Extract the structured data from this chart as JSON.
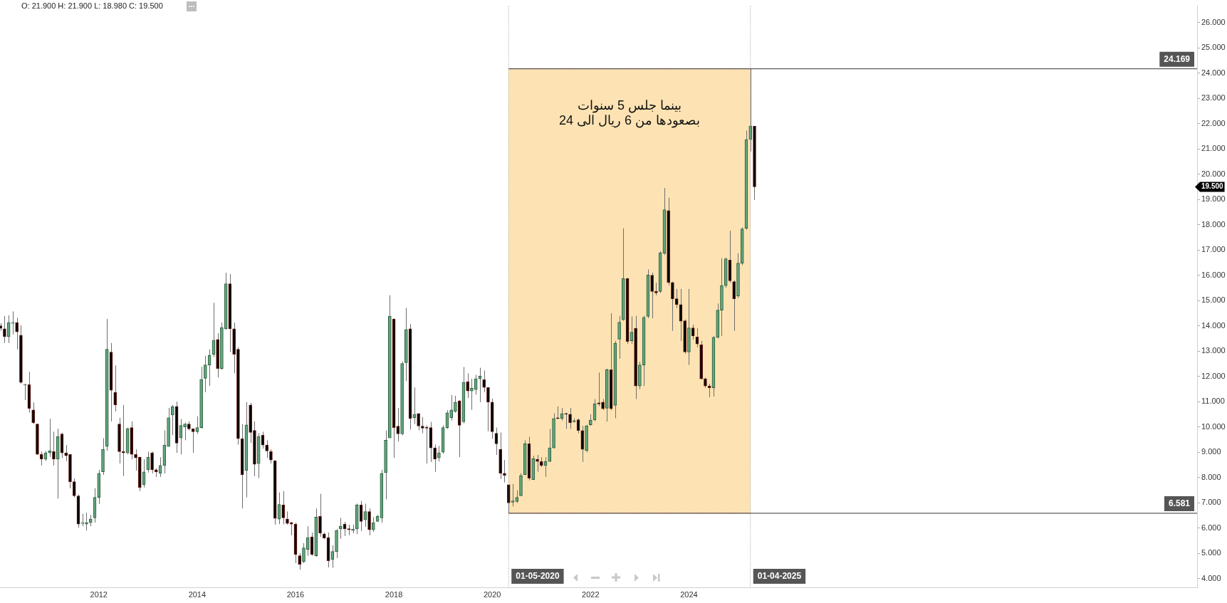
{
  "chart_data": {
    "type": "candlestick",
    "x": [
      "2010-01",
      "2010-02",
      "2010-03",
      "2010-04",
      "2010-05",
      "2010-06",
      "2010-07",
      "2010-08",
      "2010-09",
      "2010-10",
      "2010-11",
      "2010-12",
      "2011-01",
      "2011-02",
      "2011-03",
      "2011-04",
      "2011-05",
      "2011-06",
      "2011-07",
      "2011-08",
      "2011-09",
      "2011-10",
      "2011-11",
      "2011-12",
      "2012-01",
      "2012-02",
      "2012-03",
      "2012-04",
      "2012-05",
      "2012-06",
      "2012-07",
      "2012-08",
      "2012-09",
      "2012-10",
      "2012-11",
      "2012-12",
      "2013-01",
      "2013-02",
      "2013-03",
      "2013-04",
      "2013-05",
      "2013-06",
      "2013-07",
      "2013-08",
      "2013-09",
      "2013-10",
      "2013-11",
      "2013-12",
      "2014-01",
      "2014-02",
      "2014-03",
      "2014-04",
      "2014-05",
      "2014-06",
      "2014-07",
      "2014-08",
      "2014-09",
      "2014-10",
      "2014-11",
      "2014-12",
      "2015-01",
      "2015-02",
      "2015-03",
      "2015-04",
      "2015-05",
      "2015-06",
      "2015-07",
      "2015-08",
      "2015-09",
      "2015-10",
      "2015-11",
      "2015-12",
      "2016-01",
      "2016-02",
      "2016-03",
      "2016-04",
      "2016-05",
      "2016-06",
      "2016-07",
      "2016-08",
      "2016-09",
      "2016-10",
      "2016-11",
      "2016-12",
      "2017-01",
      "2017-02",
      "2017-03",
      "2017-04",
      "2017-05",
      "2017-06",
      "2017-07",
      "2017-08",
      "2017-09",
      "2017-10",
      "2017-11",
      "2017-12",
      "2018-01",
      "2018-02",
      "2018-03",
      "2018-04",
      "2018-05",
      "2018-06",
      "2018-07",
      "2018-08",
      "2018-09",
      "2018-10",
      "2018-11",
      "2018-12",
      "2019-01",
      "2019-02",
      "2019-03",
      "2019-04",
      "2019-05",
      "2019-06",
      "2019-07",
      "2019-08",
      "2019-09",
      "2019-10",
      "2019-11",
      "2019-12",
      "2020-01",
      "2020-02",
      "2020-03",
      "2020-04",
      "2020-05",
      "2020-06",
      "2020-07",
      "2020-08",
      "2020-09",
      "2020-10",
      "2020-11",
      "2020-12",
      "2021-01",
      "2021-02",
      "2021-03",
      "2021-04",
      "2021-05",
      "2021-06",
      "2021-07",
      "2021-08",
      "2021-09",
      "2021-10",
      "2021-11",
      "2021-12",
      "2022-01",
      "2022-02",
      "2022-03",
      "2022-04",
      "2022-05",
      "2022-06",
      "2022-07",
      "2022-08",
      "2022-09",
      "2022-10",
      "2022-11",
      "2022-12",
      "2023-01",
      "2023-02",
      "2023-03",
      "2023-04",
      "2023-05",
      "2023-06",
      "2023-07",
      "2023-08",
      "2023-09",
      "2023-10",
      "2023-11",
      "2023-12",
      "2024-01",
      "2024-02",
      "2024-03",
      "2024-04",
      "2024-05",
      "2024-06",
      "2024-07",
      "2024-08",
      "2024-09",
      "2024-10",
      "2024-11",
      "2024-12",
      "2025-01",
      "2025-02",
      "2025-03",
      "2025-04",
      "2025-05"
    ],
    "ohlc": [
      [
        14.0,
        14.1,
        13.8,
        13.9
      ],
      [
        13.88,
        14.39,
        13.32,
        13.57
      ],
      [
        13.57,
        14.41,
        13.32,
        14.13
      ],
      [
        14.1,
        14.57,
        13.66,
        14.13
      ],
      [
        14.13,
        14.32,
        13.07,
        13.76
      ],
      [
        13.63,
        14.02,
        11.71,
        11.76
      ],
      [
        11.65,
        11.71,
        11.06,
        11.67
      ],
      [
        11.67,
        12.18,
        10.56,
        10.73
      ],
      [
        10.67,
        10.97,
        10.11,
        10.17
      ],
      [
        10.11,
        10.12,
        8.9,
        8.91
      ],
      [
        8.91,
        9.02,
        8.47,
        8.72
      ],
      [
        8.72,
        9.04,
        8.65,
        8.97
      ],
      [
        8.97,
        10.32,
        8.81,
        9.05
      ],
      [
        9.02,
        9.81,
        8.47,
        8.72
      ],
      [
        8.72,
        9.93,
        7.16,
        9.62
      ],
      [
        9.72,
        9.76,
        8.77,
        8.97
      ],
      [
        8.97,
        9.28,
        8.65,
        8.86
      ],
      [
        8.91,
        8.92,
        7.57,
        7.83
      ],
      [
        7.83,
        7.96,
        7.21,
        7.27
      ],
      [
        7.27,
        7.32,
        6.01,
        6.15
      ],
      [
        6.18,
        6.56,
        6.07,
        6.21
      ],
      [
        6.15,
        6.6,
        5.9,
        6.21
      ],
      [
        6.21,
        6.52,
        6.07,
        6.35
      ],
      [
        6.4,
        7.57,
        6.21,
        7.21
      ],
      [
        7.21,
        8.3,
        6.95,
        8.16
      ],
      [
        8.22,
        9.55,
        8.1,
        9.11
      ],
      [
        9.22,
        14.27,
        9.05,
        13.07
      ],
      [
        12.96,
        13.32,
        10.22,
        11.45
      ],
      [
        11.37,
        12.43,
        10.61,
        10.87
      ],
      [
        10.11,
        10.36,
        8.55,
        9.02
      ],
      [
        9.02,
        10.87,
        8.05,
        8.97
      ],
      [
        8.97,
        9.97,
        8.91,
        9.93
      ],
      [
        9.97,
        10.22,
        8.72,
        8.91
      ],
      [
        8.91,
        9.11,
        8.27,
        8.77
      ],
      [
        8.8,
        8.81,
        7.46,
        7.6
      ],
      [
        7.71,
        8.72,
        7.6,
        8.22
      ],
      [
        8.3,
        9.02,
        8.19,
        8.8
      ],
      [
        8.97,
        9.02,
        8.16,
        8.3
      ],
      [
        8.3,
        8.36,
        8.02,
        8.22
      ],
      [
        8.16,
        8.8,
        8.02,
        8.47
      ],
      [
        8.47,
        9.86,
        8.16,
        9.28
      ],
      [
        9.22,
        10.75,
        9.22,
        10.36
      ],
      [
        10.47,
        10.87,
        9.67,
        10.8
      ],
      [
        10.81,
        11.0,
        8.97,
        9.36
      ],
      [
        9.56,
        10.31,
        8.91,
        10.06
      ],
      [
        10.0,
        10.17,
        9.47,
        10.11
      ],
      [
        10.11,
        10.22,
        9.86,
        9.92
      ],
      [
        9.92,
        9.92,
        8.97,
        9.81
      ],
      [
        9.81,
        10.42,
        9.72,
        9.97
      ],
      [
        9.97,
        12.38,
        9.93,
        11.88
      ],
      [
        11.92,
        12.81,
        11.37,
        12.45
      ],
      [
        12.45,
        13.07,
        11.62,
        12.84
      ],
      [
        12.87,
        14.91,
        12.76,
        13.43
      ],
      [
        13.46,
        13.71,
        11.95,
        12.31
      ],
      [
        12.31,
        14.13,
        12.26,
        13.93
      ],
      [
        13.88,
        16.1,
        13.85,
        15.66
      ],
      [
        15.66,
        16.05,
        12.96,
        13.88
      ],
      [
        13.88,
        14.13,
        12.12,
        12.87
      ],
      [
        13.07,
        13.15,
        9.3,
        9.53
      ],
      [
        9.53,
        10.11,
        6.77,
        8.1
      ],
      [
        8.27,
        10.98,
        7.21,
        10.08
      ],
      [
        10.87,
        10.95,
        9.36,
        9.78
      ],
      [
        9.86,
        10.22,
        8.05,
        8.52
      ],
      [
        8.55,
        9.75,
        7.97,
        9.61
      ],
      [
        9.67,
        9.81,
        9.14,
        9.28
      ],
      [
        9.28,
        9.47,
        8.77,
        9.05
      ],
      [
        9.02,
        9.11,
        8.55,
        8.69
      ],
      [
        8.66,
        8.67,
        6.13,
        6.38
      ],
      [
        6.35,
        7.41,
        6.15,
        6.93
      ],
      [
        6.91,
        7.46,
        6.15,
        6.4
      ],
      [
        6.35,
        6.65,
        6.13,
        6.18
      ],
      [
        6.21,
        6.24,
        5.71,
        6.15
      ],
      [
        6.15,
        6.21,
        4.61,
        4.95
      ],
      [
        4.9,
        5.01,
        4.35,
        4.56
      ],
      [
        4.67,
        5.4,
        4.61,
        5.21
      ],
      [
        5.15,
        6.07,
        4.9,
        5.62
      ],
      [
        5.65,
        5.82,
        4.9,
        4.95
      ],
      [
        4.9,
        6.77,
        4.86,
        6.43
      ],
      [
        6.46,
        7.35,
        5.65,
        5.79
      ],
      [
        5.76,
        5.82,
        5.56,
        5.6
      ],
      [
        5.62,
        5.82,
        4.44,
        4.7
      ],
      [
        4.76,
        5.32,
        4.42,
        5.07
      ],
      [
        5.07,
        5.96,
        4.81,
        5.9
      ],
      [
        5.96,
        6.4,
        5.57,
        6.07
      ],
      [
        6.15,
        6.24,
        5.68,
        5.96
      ],
      [
        5.97,
        6.13,
        5.71,
        5.93
      ],
      [
        5.9,
        6.13,
        5.79,
        5.96
      ],
      [
        5.96,
        6.96,
        5.76,
        6.91
      ],
      [
        6.91,
        7.07,
        5.88,
        6.26
      ],
      [
        6.32,
        6.96,
        6.04,
        6.65
      ],
      [
        6.65,
        6.77,
        5.71,
        5.93
      ],
      [
        5.93,
        6.43,
        5.85,
        6.21
      ],
      [
        6.26,
        6.52,
        6.24,
        6.46
      ],
      [
        6.4,
        8.3,
        6.21,
        8.16
      ],
      [
        8.19,
        9.86,
        7.13,
        9.47
      ],
      [
        9.56,
        15.21,
        9.56,
        14.38
      ],
      [
        14.27,
        14.29,
        8.77,
        9.97
      ],
      [
        10.03,
        10.75,
        9.42,
        9.72
      ],
      [
        9.72,
        12.59,
        9.67,
        12.51
      ],
      [
        12.54,
        14.71,
        11.81,
        13.85
      ],
      [
        13.88,
        14.07,
        9.89,
        10.33
      ],
      [
        10.36,
        11.56,
        10.11,
        10.5
      ],
      [
        10.53,
        10.53,
        9.86,
        10.03
      ],
      [
        10.03,
        10.39,
        9.75,
        9.95
      ],
      [
        9.97,
        10.06,
        8.55,
        9.95
      ],
      [
        9.97,
        10.2,
        8.61,
        9.17
      ],
      [
        9.17,
        9.3,
        8.22,
        8.72
      ],
      [
        8.77,
        9.25,
        8.63,
        8.97
      ],
      [
        9.0,
        10.06,
        8.94,
        9.97
      ],
      [
        9.97,
        10.66,
        9.92,
        10.56
      ],
      [
        10.36,
        11.26,
        10.25,
        10.67
      ],
      [
        10.61,
        11.23,
        10.56,
        10.98
      ],
      [
        11.03,
        11.06,
        8.8,
        10.06
      ],
      [
        10.2,
        12.37,
        10.14,
        11.76
      ],
      [
        11.79,
        12.12,
        11.14,
        11.42
      ],
      [
        11.42,
        11.9,
        10.67,
        11.53
      ],
      [
        11.48,
        12.06,
        11.28,
        11.9
      ],
      [
        11.9,
        12.34,
        10.98,
        12.01
      ],
      [
        11.87,
        12.23,
        11.37,
        11.56
      ],
      [
        11.56,
        11.57,
        9.83,
        10.98
      ],
      [
        10.98,
        11.12,
        9.53,
        9.81
      ],
      [
        9.75,
        9.97,
        8.89,
        9.33
      ],
      [
        9.11,
        9.78,
        7.94,
        8.16
      ],
      [
        8.16,
        8.69,
        7.8,
        8.08
      ],
      [
        7.71,
        7.72,
        6.581,
        6.99
      ],
      [
        7.02,
        7.74,
        6.85,
        7.07
      ],
      [
        7.05,
        7.49,
        6.99,
        7.21
      ],
      [
        7.27,
        8.16,
        7.27,
        8.08
      ],
      [
        8.11,
        9.47,
        8.11,
        9.33
      ],
      [
        9.33,
        9.61,
        7.88,
        7.97
      ],
      [
        7.91,
        8.86,
        7.91,
        8.75
      ],
      [
        8.72,
        8.89,
        8.22,
        8.63
      ],
      [
        8.63,
        8.8,
        8.41,
        8.47
      ],
      [
        8.47,
        8.8,
        8.02,
        8.63
      ],
      [
        8.63,
        9.92,
        8.61,
        9.17
      ],
      [
        9.17,
        10.53,
        9.14,
        10.33
      ],
      [
        10.36,
        10.81,
        10.3,
        10.33
      ],
      [
        10.33,
        10.75,
        10.25,
        10.53
      ],
      [
        10.53,
        10.56,
        9.92,
        10.5
      ],
      [
        10.5,
        10.75,
        9.92,
        10.17
      ],
      [
        10.2,
        10.33,
        10.17,
        10.25
      ],
      [
        10.28,
        10.33,
        9.75,
        9.86
      ],
      [
        9.85,
        10.04,
        8.61,
        9.11
      ],
      [
        9.07,
        10.08,
        8.99,
        10.04
      ],
      [
        10.08,
        10.5,
        10.04,
        10.27
      ],
      [
        10.27,
        11.1,
        10.23,
        10.91
      ],
      [
        10.95,
        12.15,
        10.82,
        10.91
      ],
      [
        10.98,
        11.1,
        10.66,
        10.72
      ],
      [
        10.74,
        12.3,
        10.21,
        12.26
      ],
      [
        12.26,
        14.5,
        10.66,
        10.72
      ],
      [
        10.85,
        13.4,
        10.34,
        13.31
      ],
      [
        13.47,
        14.39,
        12.7,
        14.14
      ],
      [
        14.24,
        17.86,
        14.2,
        15.87
      ],
      [
        15.87,
        15.9,
        13.28,
        13.38
      ],
      [
        13.41,
        14.37,
        13.28,
        13.75
      ],
      [
        13.9,
        14.39,
        11.1,
        11.62
      ],
      [
        11.62,
        12.58,
        11.49,
        12.45
      ],
      [
        12.45,
        14.4,
        11.62,
        14.33
      ],
      [
        14.37,
        16.23,
        14.3,
        16.01
      ],
      [
        16.0,
        16.1,
        14.3,
        15.36
      ],
      [
        15.36,
        15.7,
        15.2,
        15.3
      ],
      [
        15.36,
        16.95,
        15.3,
        16.89
      ],
      [
        16.87,
        19.45,
        16.8,
        18.59
      ],
      [
        18.56,
        19.07,
        15.6,
        15.71
      ],
      [
        15.71,
        15.75,
        13.8,
        15.07
      ],
      [
        15.07,
        15.46,
        14.7,
        14.84
      ],
      [
        14.84,
        15.46,
        13.4,
        14.18
      ],
      [
        14.2,
        14.25,
        12.9,
        12.96
      ],
      [
        12.96,
        15.46,
        12.45,
        13.92
      ],
      [
        13.92,
        14.05,
        13.45,
        13.6
      ],
      [
        13.56,
        13.9,
        13.15,
        13.28
      ],
      [
        13.25,
        13.4,
        11.88,
        11.9
      ],
      [
        11.9,
        11.95,
        11.55,
        11.62
      ],
      [
        11.62,
        11.7,
        11.17,
        11.55
      ],
      [
        11.55,
        13.6,
        11.2,
        13.54
      ],
      [
        13.54,
        14.88,
        13.5,
        14.62
      ],
      [
        14.62,
        16.67,
        13.6,
        15.59
      ],
      [
        15.59,
        16.7,
        15.5,
        16.65
      ],
      [
        16.6,
        17.76,
        15.7,
        15.78
      ],
      [
        15.75,
        15.8,
        13.8,
        15.07
      ],
      [
        15.18,
        16.87,
        15.1,
        16.48
      ],
      [
        16.48,
        17.9,
        16.4,
        17.83
      ],
      [
        17.86,
        21.73,
        17.8,
        21.37
      ],
      [
        21.37,
        24.169,
        20.9,
        21.9
      ],
      [
        21.9,
        21.9,
        18.98,
        19.5
      ]
    ],
    "xlim": [
      "2009-12-28",
      "2034-05"
    ],
    "xticks": [
      "2012",
      "2014",
      "2016",
      "2018",
      "2020",
      "2022",
      "2024"
    ],
    "ylim": [
      3.65,
      26.65
    ],
    "yticks": [
      {
        "value": 4,
        "label": "4.000"
      },
      {
        "value": 5,
        "label": "5.000"
      },
      {
        "value": 6,
        "label": "6.000"
      },
      {
        "value": 7,
        "label": "7.000"
      },
      {
        "value": 8,
        "label": "8.000"
      },
      {
        "value": 9,
        "label": "9.000"
      },
      {
        "value": 10,
        "label": "10.000"
      },
      {
        "value": 11,
        "label": "11.000"
      },
      {
        "value": 12,
        "label": "12.000"
      },
      {
        "value": 13,
        "label": "13.000"
      },
      {
        "value": 14,
        "label": "14.000"
      },
      {
        "value": 15,
        "label": "15.000"
      },
      {
        "value": 16,
        "label": "16.000"
      },
      {
        "value": 17,
        "label": "17.000"
      },
      {
        "value": 18,
        "label": "18.000"
      },
      {
        "value": 19,
        "label": "19.000"
      },
      {
        "value": 20,
        "label": "20.000"
      },
      {
        "value": 21,
        "label": "21.000"
      },
      {
        "value": 22,
        "label": "22.000"
      },
      {
        "value": 23,
        "label": "23.000"
      },
      {
        "value": 24,
        "label": "24.000"
      },
      {
        "value": 25,
        "label": "25.000"
      },
      {
        "value": 26,
        "label": "26.000"
      }
    ],
    "bands": [
      {
        "axis": "x",
        "from": "2020-05",
        "to": "2025-04",
        "color": "#fde3b3"
      }
    ],
    "ref_lines": [
      {
        "axis": "x",
        "value": "2020-05",
        "label": "01-05-2020"
      },
      {
        "axis": "x",
        "value": "2025-04",
        "label": "01-04-2025"
      },
      {
        "axis": "y",
        "value": 24.169,
        "label": "24.169"
      },
      {
        "axis": "y",
        "value": 6.581,
        "label": "6.581"
      }
    ],
    "annotations": [
      "O: 21.900 H: 21.900 L: 18.980 C: 19.500",
      "بينما جلس 5 سنوات\nبصعودها من 6 ريال الى 24",
      "19.500"
    ]
  }
}
